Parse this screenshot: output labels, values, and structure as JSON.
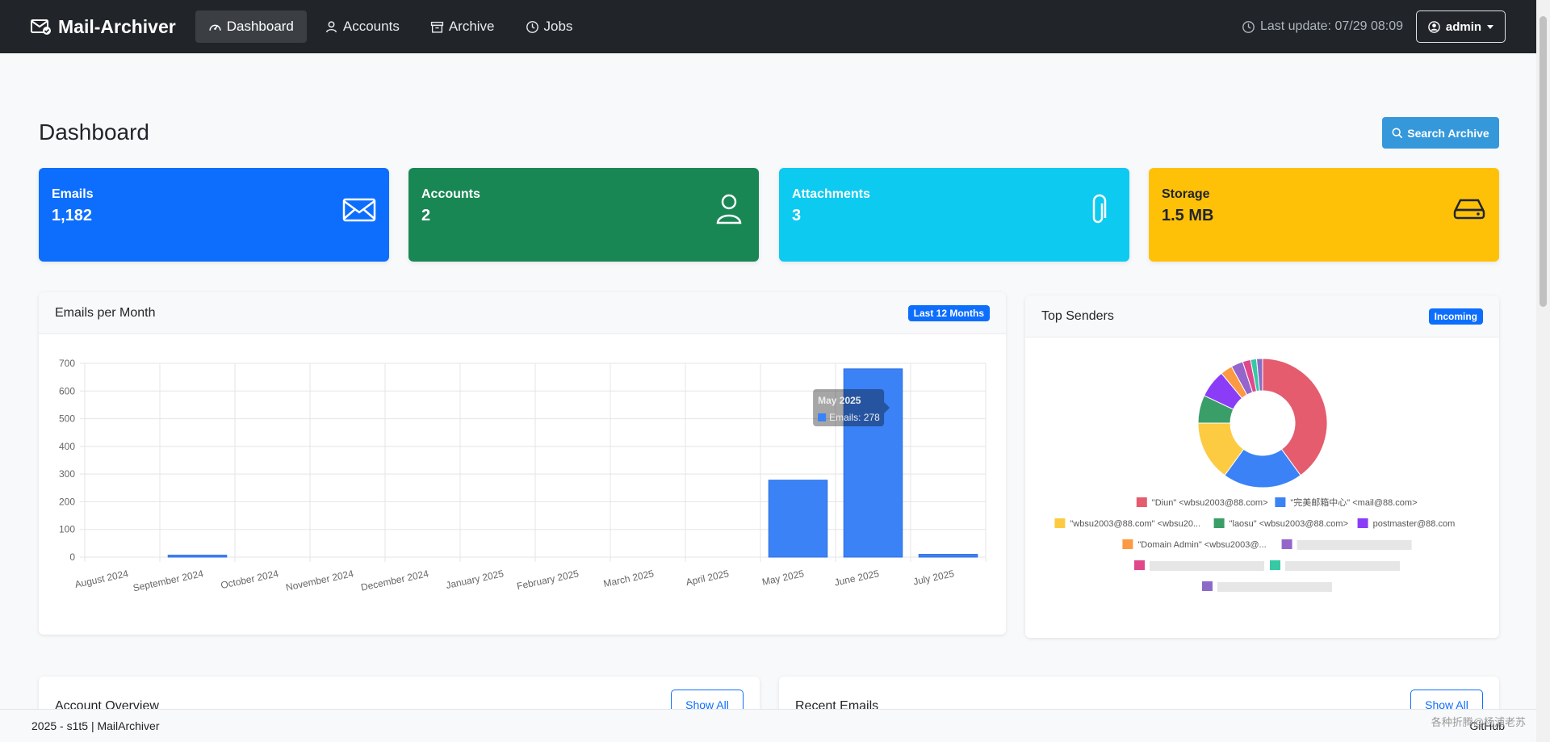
{
  "nav": {
    "brand": "Mail-Archiver",
    "items": [
      {
        "label": "Dashboard",
        "icon": "speedometer-icon"
      },
      {
        "label": "Accounts",
        "icon": "person-icon"
      },
      {
        "label": "Archive",
        "icon": "archive-icon"
      },
      {
        "label": "Jobs",
        "icon": "clock-icon"
      }
    ],
    "last_update": "Last update: 07/29 08:09",
    "user": "admin"
  },
  "page": {
    "title": "Dashboard",
    "search_label": "Search Archive"
  },
  "stats": [
    {
      "label": "Emails",
      "value": "1,182",
      "color": "#0d6efd"
    },
    {
      "label": "Accounts",
      "value": "2",
      "color": "#198754"
    },
    {
      "label": "Attachments",
      "value": "3",
      "color": "#0dcaf0"
    },
    {
      "label": "Storage",
      "value": "1.5 MB",
      "color": "#ffc107"
    }
  ],
  "cards": {
    "emails_per_month": {
      "title": "Emails per Month",
      "badge": "Last 12 Months"
    },
    "top_senders": {
      "title": "Top Senders",
      "badge": "Incoming"
    },
    "account_overview": {
      "title": "Account Overview",
      "button": "Show All"
    },
    "recent_emails": {
      "title": "Recent Emails",
      "button": "Show All"
    }
  },
  "chart_data": [
    {
      "type": "bar",
      "title": "Emails per Month",
      "categories": [
        "August 2024",
        "September 2024",
        "October 2024",
        "November 2024",
        "December 2024",
        "January 2025",
        "February 2025",
        "March 2025",
        "April 2025",
        "May 2025",
        "June 2025",
        "July 2025"
      ],
      "values": [
        0,
        7,
        0,
        0,
        0,
        0,
        0,
        0,
        0,
        278,
        680,
        10
      ],
      "ylim": [
        0,
        700
      ],
      "yticks": [
        0,
        100,
        200,
        300,
        400,
        500,
        600,
        700
      ],
      "grid": true,
      "color": "#3b82f6",
      "tooltip": {
        "title": "May 2025",
        "label": "Emails: 278"
      }
    },
    {
      "type": "pie",
      "title": "Top Senders",
      "legend": [
        {
          "label": "\"Diun\" <wbsu2003@88.com>",
          "color": "#e55c6e",
          "value": 40
        },
        {
          "label": "\"完美邮箱中心\" <mail@88.com>",
          "color": "#3b82f6",
          "value": 20
        },
        {
          "label": "\"wbsu2003@88.com\" <wbsu20...",
          "color": "#fccb42",
          "value": 15
        },
        {
          "label": "\"laosu\" <wbsu2003@88.com>",
          "color": "#3a9e68",
          "value": 7
        },
        {
          "label": "postmaster@88.com",
          "color": "#8b3cf7",
          "value": 7
        },
        {
          "label": "\"Domain Admin\" <wbsu2003@...",
          "color": "#fb9a42",
          "value": 3
        },
        {
          "label": "",
          "color": "#9466cc",
          "value": 3
        },
        {
          "label": "",
          "color": "#e0488b",
          "value": 2
        },
        {
          "label": "",
          "color": "#36c9a3",
          "value": 1.5
        },
        {
          "label": "",
          "color": "#8c6bc8",
          "value": 1.5
        }
      ]
    }
  ],
  "footer": {
    "text": "2025 - s1t5 | MailArchiver",
    "link": "GitHub"
  },
  "watermark": "各种折腾@杨浦老苏"
}
